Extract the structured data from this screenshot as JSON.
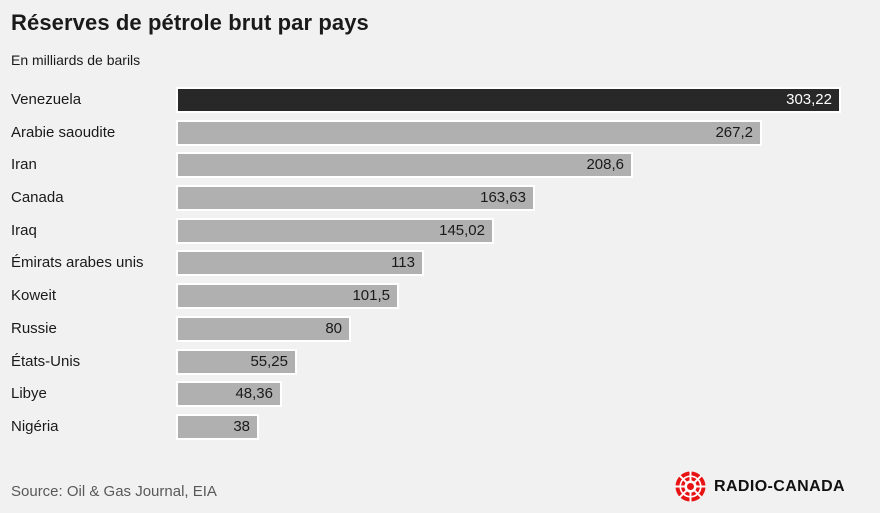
{
  "title": "Réserves de pétrole brut par pays",
  "subtitle": "En milliards de barils",
  "source": "Source: Oil & Gas Journal, EIA",
  "logo": {
    "text": "RADIO-CANADA",
    "gem_icon": "radio-canada-gem",
    "color": "#e81313"
  },
  "colors": {
    "background": "#f1f1f1",
    "bar": "#b0b0b0",
    "bar_highlight": "#282828",
    "bar_border": "#ffffff",
    "text": "#1a1a1a",
    "value_on_dark": "#ffffff",
    "source_text": "#595959"
  },
  "chart_data": {
    "type": "bar",
    "orientation": "horizontal",
    "title": "Réserves de pétrole brut par pays",
    "unit_label": "En milliards de barils",
    "categories": [
      "Venezuela",
      "Arabie saoudite",
      "Iran",
      "Canada",
      "Iraq",
      "Émirats arabes unis",
      "Koweit",
      "Russie",
      "États-Unis",
      "Libye",
      "Nigéria"
    ],
    "values": [
      303.22,
      267.2,
      208.6,
      163.63,
      145.02,
      113,
      101.5,
      80,
      55.25,
      48.36,
      38
    ],
    "value_labels": [
      "303,22",
      "267,2",
      "208,6",
      "163,63",
      "145,02",
      "113",
      "101,5",
      "80",
      "55,25",
      "48,36",
      "38"
    ],
    "highlight_index": 0,
    "value_label_position": "inside-end",
    "xlim": [
      0,
      320
    ],
    "grid": false,
    "legend": false
  }
}
